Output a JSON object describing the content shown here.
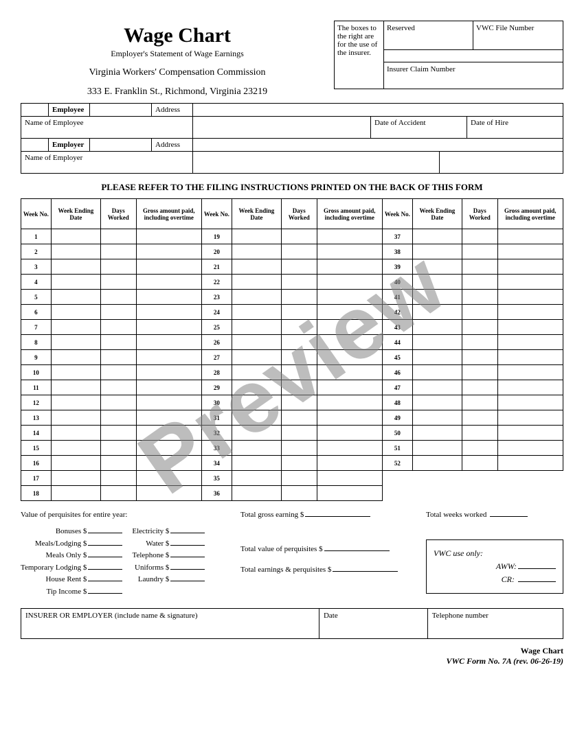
{
  "title": "Wage Chart",
  "subtitle": "Employer's Statement of Wage Earnings",
  "commission_name": "Virginia Workers' Compensation Commission",
  "commission_addr": "333 E. Franklin St., Richmond, Virginia 23219",
  "insurer_note": "The boxes to the right are for the use of the insurer.",
  "reserved_label": "Reserved",
  "vwc_file_label": "VWC File Number",
  "claim_num_label": "Insurer Claim Number",
  "employee_label": "Employee",
  "address_label": "Address",
  "name_employee_label": "Name of Employee",
  "date_accident_label": "Date of Accident",
  "date_hire_label": "Date of Hire",
  "employer_label": "Employer",
  "name_employer_label": "Name of Employer",
  "instruction": "PLEASE REFER TO THE FILING INSTRUCTIONS PRINTED ON THE BACK OF THIS FORM",
  "headers": {
    "week_no": "Week No.",
    "week_ending": "Week Ending Date",
    "days_worked": "Days Worked",
    "gross": "Gross amount paid, including overtime"
  },
  "perq_title": "Value of perquisites for entire year:",
  "perq_col1": [
    "Bonuses $",
    "Meals/Lodging $",
    "Meals Only $",
    "Temporary Lodging $",
    "House Rent $",
    "Tip Income $"
  ],
  "perq_col2": [
    "Electricity $",
    "Water $",
    "Telephone $",
    "Uniforms $",
    "Laundry $"
  ],
  "total_gross": "Total gross earning $",
  "total_weeks": "Total weeks worked",
  "total_perq": "Total value of perquisites $",
  "total_earn_perq": "Total earnings & perquisites $",
  "vwc_use": "VWC use only:",
  "aww": "AWW:",
  "cr": "CR:",
  "sig_label": "INSURER OR EMPLOYER (include name & signature)",
  "date_label": "Date",
  "phone_label": "Telephone number",
  "footer_title": "Wage Chart",
  "footer_form": "VWC Form No. 7A (rev. 06-26-19)",
  "watermark": "Preview"
}
